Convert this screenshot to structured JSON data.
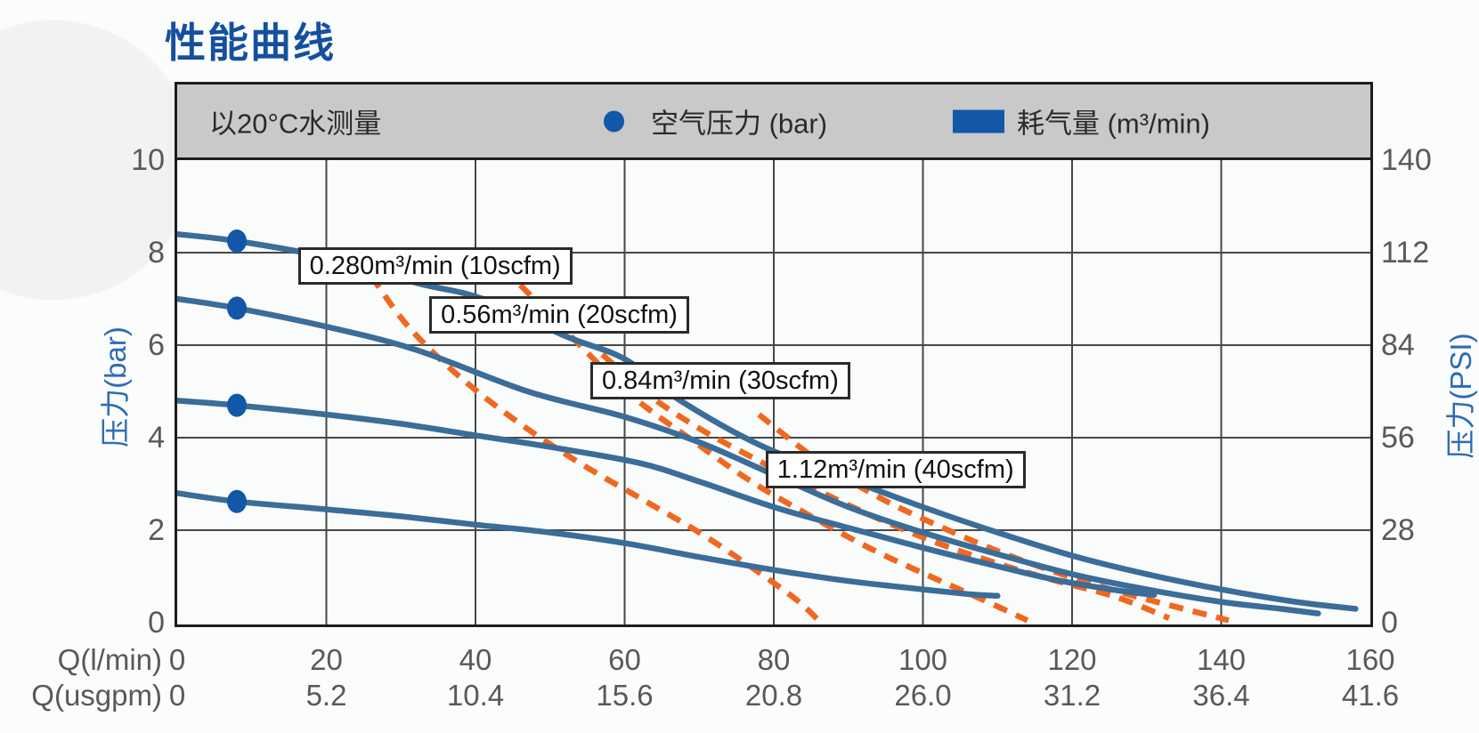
{
  "title": "性能曲线",
  "legend": {
    "note": "以20°C水测量",
    "pressure_label": "空气压力 (bar)",
    "consumption_label": "耗气量 (m³/min)"
  },
  "chart_data": {
    "type": "line",
    "title": "性能曲线",
    "x_axis": {
      "label": "Q(l/min)",
      "ticks": [
        0,
        20,
        40,
        60,
        80,
        100,
        120,
        140,
        160
      ],
      "range": [
        0,
        160
      ]
    },
    "x_axis_secondary": {
      "label": "Q(usgpm)",
      "ticks": [
        "0",
        "5.2",
        "10.4",
        "15.6",
        "20.8",
        "26.0",
        "31.2",
        "36.4",
        "41.6"
      ],
      "range": [
        0,
        41.6
      ]
    },
    "y_axis": {
      "label": "压力(bar)",
      "ticks": [
        10,
        8,
        6,
        4,
        2,
        0
      ],
      "range": [
        0,
        10
      ]
    },
    "y_axis_secondary": {
      "label": "压力(PSI)",
      "ticks": [
        140,
        112,
        84,
        56,
        28,
        0
      ],
      "range": [
        0,
        140
      ]
    },
    "grid": {
      "on": true,
      "x_step": 20,
      "y_step": 2
    },
    "series": [
      {
        "name": "10scfm",
        "role": "air-pressure",
        "style": "solid",
        "points": [
          [
            0,
            8.4
          ],
          [
            8,
            8.25
          ],
          [
            20,
            7.9
          ],
          [
            32,
            7.35
          ],
          [
            41,
            7.0
          ],
          [
            52,
            6.2
          ],
          [
            60,
            5.7
          ],
          [
            67,
            4.85
          ],
          [
            78,
            3.85
          ],
          [
            90,
            3.1
          ],
          [
            100,
            2.5
          ],
          [
            110,
            1.95
          ],
          [
            120,
            1.45
          ],
          [
            130,
            1.05
          ],
          [
            140,
            0.72
          ],
          [
            150,
            0.45
          ],
          [
            158,
            0.3
          ]
        ]
      },
      {
        "name": "20scfm",
        "role": "air-pressure",
        "style": "solid",
        "points": [
          [
            0,
            7.0
          ],
          [
            8,
            6.8
          ],
          [
            20,
            6.4
          ],
          [
            32,
            5.9
          ],
          [
            47,
            5.0
          ],
          [
            60,
            4.45
          ],
          [
            70,
            3.9
          ],
          [
            80,
            3.2
          ],
          [
            90,
            2.5
          ],
          [
            100,
            1.95
          ],
          [
            110,
            1.48
          ],
          [
            120,
            1.05
          ],
          [
            130,
            0.72
          ],
          [
            140,
            0.45
          ],
          [
            148,
            0.3
          ],
          [
            153,
            0.2
          ]
        ]
      },
      {
        "name": "30scfm",
        "role": "air-pressure",
        "style": "solid",
        "points": [
          [
            0,
            4.8
          ],
          [
            8,
            4.7
          ],
          [
            20,
            4.5
          ],
          [
            30,
            4.3
          ],
          [
            40,
            4.05
          ],
          [
            50,
            3.8
          ],
          [
            62,
            3.45
          ],
          [
            70,
            3.05
          ],
          [
            80,
            2.5
          ],
          [
            90,
            2.05
          ],
          [
            100,
            1.62
          ],
          [
            110,
            1.22
          ],
          [
            118,
            0.92
          ],
          [
            126,
            0.7
          ],
          [
            131,
            0.6
          ]
        ]
      },
      {
        "name": "40scfm",
        "role": "air-pressure",
        "style": "solid",
        "points": [
          [
            0,
            2.8
          ],
          [
            8,
            2.62
          ],
          [
            20,
            2.45
          ],
          [
            30,
            2.3
          ],
          [
            40,
            2.12
          ],
          [
            50,
            1.95
          ],
          [
            60,
            1.72
          ],
          [
            70,
            1.42
          ],
          [
            80,
            1.14
          ],
          [
            90,
            0.9
          ],
          [
            100,
            0.72
          ],
          [
            106,
            0.62
          ],
          [
            110,
            0.58
          ]
        ]
      },
      {
        "name": "10scfm",
        "role": "air-consumption",
        "style": "dashed",
        "points": [
          [
            26,
            7.5
          ],
          [
            31,
            6.4
          ],
          [
            38,
            5.3
          ],
          [
            46,
            4.3
          ],
          [
            54,
            3.45
          ],
          [
            62,
            2.7
          ],
          [
            70,
            1.95
          ],
          [
            77,
            1.2
          ],
          [
            83,
            0.5
          ],
          [
            86,
            0.05
          ]
        ]
      },
      {
        "name": "20scfm",
        "role": "air-consumption",
        "style": "dashed",
        "points": [
          [
            46,
            7.3
          ],
          [
            54,
            6.0
          ],
          [
            61,
            4.9
          ],
          [
            69,
            3.95
          ],
          [
            77,
            3.05
          ],
          [
            85,
            2.3
          ],
          [
            93,
            1.6
          ],
          [
            101,
            1.0
          ],
          [
            108,
            0.5
          ],
          [
            114,
            0.05
          ]
        ]
      },
      {
        "name": "30scfm",
        "role": "air-consumption",
        "style": "dashed",
        "points": [
          [
            57,
            5.8
          ],
          [
            63,
            4.95
          ],
          [
            70,
            4.2
          ],
          [
            78,
            3.5
          ],
          [
            86,
            2.85
          ],
          [
            94,
            2.25
          ],
          [
            102,
            1.72
          ],
          [
            110,
            1.28
          ],
          [
            118,
            0.9
          ],
          [
            126,
            0.55
          ],
          [
            133,
            0.1
          ]
        ]
      },
      {
        "name": "40scfm",
        "role": "air-consumption",
        "style": "dashed",
        "points": [
          [
            78,
            4.5
          ],
          [
            86,
            3.5
          ],
          [
            94,
            2.72
          ],
          [
            102,
            2.1
          ],
          [
            110,
            1.55
          ],
          [
            118,
            1.08
          ],
          [
            126,
            0.68
          ],
          [
            133,
            0.38
          ],
          [
            141,
            0.05
          ]
        ]
      }
    ],
    "markers": {
      "role": "air-pressure-dots",
      "points": [
        [
          8,
          8.25
        ],
        [
          8,
          6.8
        ],
        [
          8,
          4.7
        ],
        [
          8,
          2.62
        ]
      ]
    },
    "annotations": [
      {
        "label": "0.280m³/min (10scfm)",
        "x": 16.2,
        "y": 8.12
      },
      {
        "label": "0.56m³/min (20scfm)",
        "x": 33.8,
        "y": 7.06
      },
      {
        "label": "0.84m³/min (30scfm)",
        "x": 55.4,
        "y": 5.63
      },
      {
        "label": "1.12m³/min (40scfm)",
        "x": 78.9,
        "y": 3.72
      }
    ]
  },
  "colors": {
    "title_blue": "#15509e",
    "curve_blue": "#3a6d99",
    "marker_blue": "#1257a8",
    "consumption_orange": "#f0681f",
    "legend_band_gray": "#c9c9c9",
    "grid_gray": "#474747",
    "frame_black": "#1d1d1d",
    "tick_text_gray": "#58595b",
    "axis_title_blue": "#2e6cb3"
  }
}
